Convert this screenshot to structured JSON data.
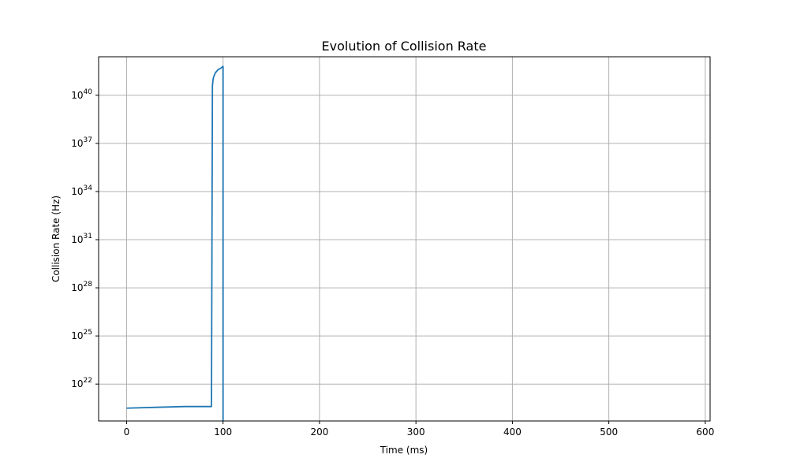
{
  "chart_data": {
    "type": "line",
    "title": "Evolution of Collision Rate",
    "xlabel": "Time (ms)",
    "ylabel": "Collision Rate (Hz)",
    "yscale": "log",
    "xlim": [
      -29,
      605
    ],
    "ylim_log10": [
      19.7,
      42.4
    ],
    "xticks": [
      0,
      100,
      200,
      300,
      400,
      500,
      600
    ],
    "yticks": [
      {
        "base": "10",
        "exp": "22",
        "log10": 22
      },
      {
        "base": "10",
        "exp": "25",
        "log10": 25
      },
      {
        "base": "10",
        "exp": "28",
        "log10": 28
      },
      {
        "base": "10",
        "exp": "31",
        "log10": 31
      },
      {
        "base": "10",
        "exp": "34",
        "log10": 34
      },
      {
        "base": "10",
        "exp": "37",
        "log10": 37
      },
      {
        "base": "10",
        "exp": "40",
        "log10": 40
      }
    ],
    "grid": true,
    "color": "#1f77b4",
    "series": [
      {
        "x_ms": [
          0,
          30,
          60,
          88,
          89,
          89.5,
          90,
          92,
          95,
          98,
          100,
          100,
          100
        ],
        "log10_y": [
          20.5,
          20.55,
          20.6,
          20.6,
          40.6,
          40.9,
          41.1,
          41.4,
          41.6,
          41.7,
          41.8,
          30,
          19.7
        ]
      }
    ]
  }
}
